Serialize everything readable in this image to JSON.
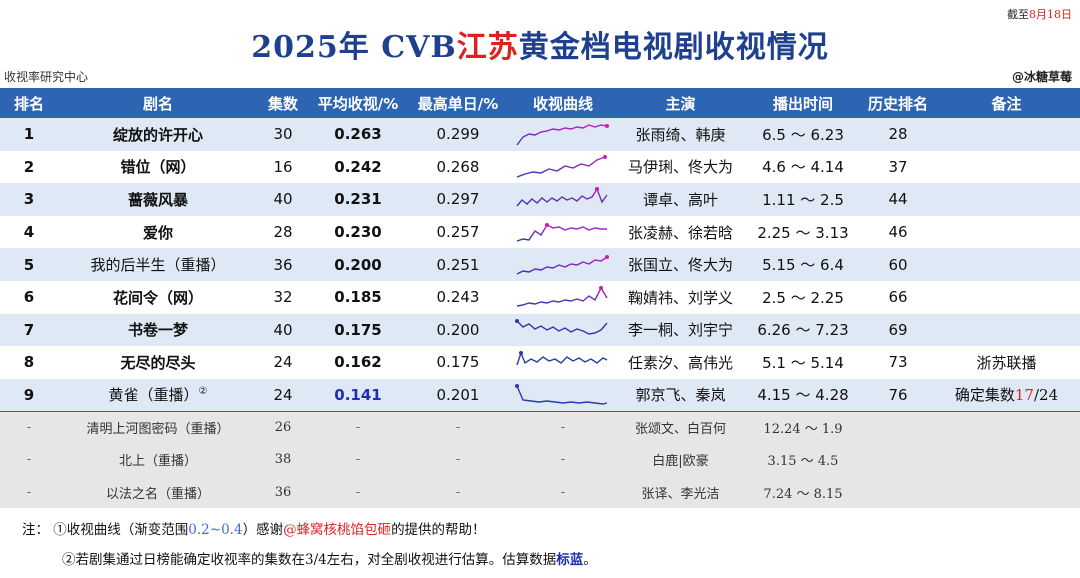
{
  "date_stamp": {
    "prefix": "截至",
    "date": "8月18日"
  },
  "title": {
    "part1": "2025年 CVB",
    "highlight": "江苏",
    "part2": "黄金档电视剧收视情况"
  },
  "source": "收视率研究中心",
  "author": "@冰糖草莓",
  "headers": [
    "排名",
    "剧名",
    "集数",
    "平均收视/%",
    "最高单日/%",
    "收视曲线",
    "主演",
    "播出时间",
    "历史排名",
    "备注"
  ],
  "rows": [
    {
      "rank": "1",
      "name": "绽放的许开心",
      "eps": "30",
      "avg": "0.263",
      "max": "0.299",
      "cast": "张雨绮、韩庚",
      "time": "6.5 ～ 6.23",
      "hist": "28",
      "note": ""
    },
    {
      "rank": "2",
      "name": "错位（网）",
      "eps": "16",
      "avg": "0.242",
      "max": "0.268",
      "cast": "马伊琍、佟大为",
      "time": "4.6 ～ 4.14",
      "hist": "37",
      "note": ""
    },
    {
      "rank": "3",
      "name": "蔷薇风暴",
      "eps": "40",
      "avg": "0.231",
      "max": "0.297",
      "cast": "谭卓、高叶",
      "time": "1.11 ～  2.5",
      "hist": "44",
      "note": ""
    },
    {
      "rank": "4",
      "name": "爱你",
      "eps": "28",
      "avg": "0.230",
      "max": "0.257",
      "cast": "张凌赫、徐若晗",
      "time": "2.25 ～ 3.13",
      "hist": "46",
      "note": ""
    },
    {
      "rank": "5",
      "name": "我的后半生（重播）",
      "eps": "36",
      "avg": "0.200",
      "max": "0.251",
      "cast": "张国立、佟大为",
      "time": "5.15 ～  6.4",
      "hist": "60",
      "note": ""
    },
    {
      "rank": "6",
      "name": "花间令（网）",
      "eps": "32",
      "avg": "0.185",
      "max": "0.243",
      "cast": "鞠婧祎、刘学义",
      "time": "2.5 ～ 2.25",
      "hist": "66",
      "note": ""
    },
    {
      "rank": "7",
      "name": "书卷一梦",
      "eps": "40",
      "avg": "0.175",
      "max": "0.200",
      "cast": "李一桐、刘宇宁",
      "time": "6.26 ～ 7.23",
      "hist": "69",
      "note": ""
    },
    {
      "rank": "8",
      "name": "无尽的尽头",
      "eps": "24",
      "avg": "0.162",
      "max": "0.175",
      "cast": "任素汐、高伟光",
      "time": "5.1 ～ 5.14",
      "hist": "73",
      "note": "浙苏联播"
    },
    {
      "rank": "9",
      "name": "黄雀（重播）",
      "name_sup": "②",
      "eps": "24",
      "avg": "0.141",
      "max": "0.201",
      "cast": "郭京飞、秦岚",
      "time": "4.15 ～ 4.28",
      "hist": "76",
      "note_prefix": "确定集数",
      "note_red": "17",
      "note_suffix": "/24"
    }
  ],
  "extra_rows": [
    {
      "rank": "-",
      "name": "清明上河图密码（重播）",
      "eps": "26",
      "avg": "-",
      "max": "-",
      "curve": "-",
      "cast": "张颂文、白百何",
      "time": "12.24  ～  1.9"
    },
    {
      "rank": "-",
      "name": "北上（重播）",
      "eps": "38",
      "avg": "-",
      "max": "-",
      "curve": "-",
      "cast": "白鹿|欧豪",
      "time": "3.15  ～  4.5"
    },
    {
      "rank": "-",
      "name": "以法之名（重播）",
      "eps": "36",
      "avg": "-",
      "max": "-",
      "curve": "-",
      "cast": "张译、李光洁",
      "time": "7.24  ～  8.15"
    }
  ],
  "notes": {
    "label": "注：",
    "n1_a": "①收视曲线（渐变范围",
    "n1_range": "0.2~0.4",
    "n1_b": "）感谢",
    "n1_at": "@蜂窝核桃馅包砸",
    "n1_c": "的提供的帮助！",
    "n2_a": "②若剧集通过日榜能确定收视率的集数在3/4左右，对全剧收视进行估算。估算数据",
    "n2_blue": "标蓝",
    "n2_c": "。"
  },
  "sparkline_colors": {
    "high": "#c020c0",
    "low": "#2a3aa8"
  }
}
